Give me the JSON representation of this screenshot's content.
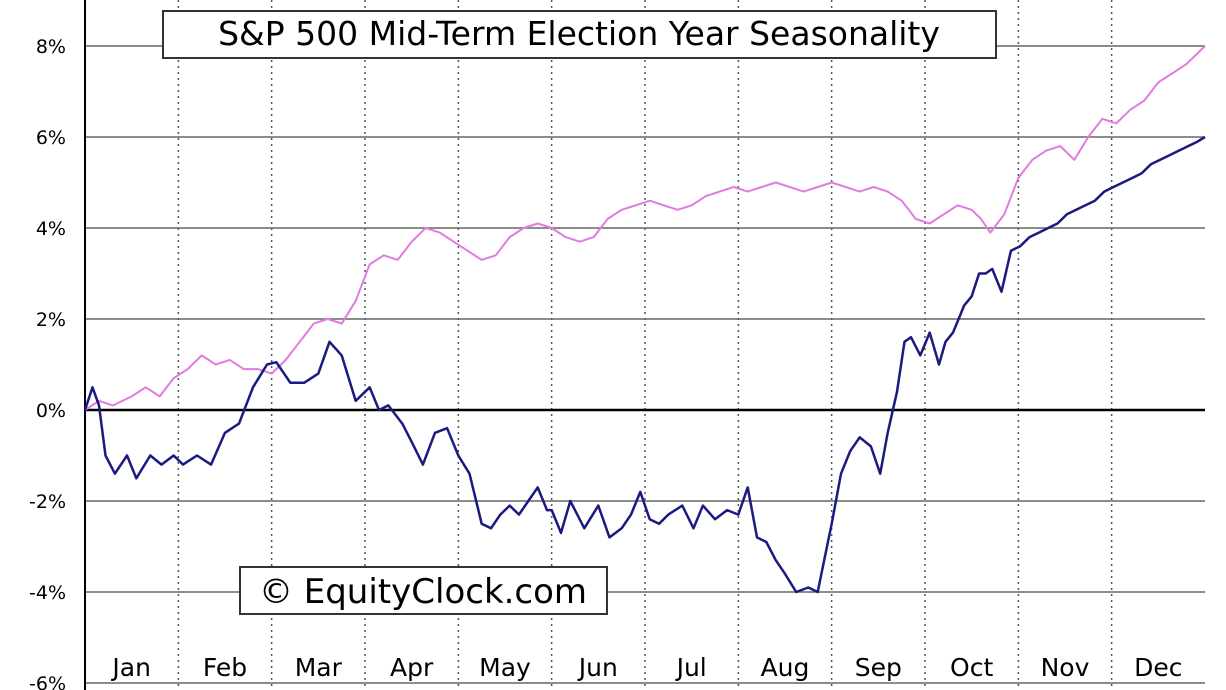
{
  "chart_data": {
    "type": "line",
    "title": "S&P 500 Mid-Term Election Year Seasonality",
    "watermark": "© EquityClock.com",
    "xlabel": "",
    "ylabel": "",
    "x_labels": [
      "Jan",
      "Feb",
      "Mar",
      "Apr",
      "May",
      "Jun",
      "Jul",
      "Aug",
      "Sep",
      "Oct",
      "Nov",
      "Dec"
    ],
    "y_tick_labels": [
      "-6%",
      "-4%",
      "-2%",
      "0%",
      "2%",
      "4%",
      "6%",
      "8%"
    ],
    "y_ticks": [
      -6,
      -4,
      -2,
      0,
      2,
      4,
      6,
      8
    ],
    "xlim": [
      0,
      12
    ],
    "ylim": [
      -6,
      8.5
    ],
    "grid": {
      "horizontal": "solid",
      "vertical": "dotted"
    },
    "series": [
      {
        "color": "#1a1a80",
        "x": [
          0.0,
          0.08,
          0.15,
          0.22,
          0.32,
          0.45,
          0.55,
          0.7,
          0.82,
          0.95,
          1.05,
          1.2,
          1.35,
          1.5,
          1.65,
          1.8,
          1.95,
          2.05,
          2.2,
          2.35,
          2.5,
          2.62,
          2.75,
          2.9,
          3.05,
          3.15,
          3.25,
          3.4,
          3.5,
          3.62,
          3.75,
          3.88,
          4.0,
          4.12,
          4.25,
          4.35,
          4.45,
          4.55,
          4.65,
          4.75,
          4.85,
          4.95,
          5.0,
          5.1,
          5.2,
          5.35,
          5.5,
          5.62,
          5.75,
          5.85,
          5.95,
          6.05,
          6.15,
          6.25,
          6.4,
          6.52,
          6.62,
          6.75,
          6.88,
          7.0,
          7.1,
          7.2,
          7.3,
          7.4,
          7.5,
          7.62,
          7.75,
          7.85,
          7.92,
          8.0,
          8.1,
          8.2,
          8.3,
          8.42,
          8.52,
          8.6,
          8.7,
          8.78,
          8.85,
          8.95,
          9.05,
          9.15,
          9.22,
          9.3,
          9.42,
          9.5,
          9.58,
          9.65,
          9.72,
          9.82,
          9.92,
          10.02,
          10.12,
          10.22,
          10.32,
          10.42,
          10.52,
          10.62,
          10.72,
          10.82,
          10.92,
          11.02,
          11.12,
          11.22,
          11.32,
          11.42,
          11.52,
          11.62,
          11.72,
          11.82,
          11.92,
          12.0
        ],
        "y": [
          0.0,
          0.5,
          0.1,
          -1.0,
          -1.4,
          -1.0,
          -1.5,
          -1.0,
          -1.2,
          -1.0,
          -1.2,
          -1.0,
          -1.2,
          -0.5,
          -0.3,
          0.5,
          1.0,
          1.05,
          0.6,
          0.6,
          0.8,
          1.5,
          1.2,
          0.2,
          0.5,
          0.0,
          0.1,
          -0.3,
          -0.7,
          -1.2,
          -0.5,
          -0.4,
          -1.0,
          -1.4,
          -2.5,
          -2.6,
          -2.3,
          -2.1,
          -2.3,
          -2.0,
          -1.7,
          -2.2,
          -2.2,
          -2.7,
          -2.0,
          -2.6,
          -2.1,
          -2.8,
          -2.6,
          -2.3,
          -1.8,
          -2.4,
          -2.5,
          -2.3,
          -2.1,
          -2.6,
          -2.1,
          -2.4,
          -2.2,
          -2.3,
          -1.7,
          -2.8,
          -2.9,
          -3.3,
          -3.6,
          -4.0,
          -3.9,
          -4.0,
          -3.3,
          -2.5,
          -1.4,
          -0.9,
          -0.6,
          -0.8,
          -1.4,
          -0.5,
          0.4,
          1.5,
          1.6,
          1.2,
          1.7,
          1.0,
          1.5,
          1.7,
          2.3,
          2.5,
          3.0,
          3.0,
          3.1,
          2.6,
          3.5,
          3.6,
          3.8,
          3.9,
          4.0,
          4.1,
          4.3,
          4.4,
          4.5,
          4.6,
          4.8,
          4.9,
          5.0,
          5.1,
          5.2,
          5.4,
          5.5,
          5.6,
          5.7,
          5.8,
          5.9,
          6.0
        ]
      },
      {
        "color": "#e07be0",
        "x": [
          0.0,
          0.15,
          0.3,
          0.5,
          0.65,
          0.8,
          0.95,
          1.1,
          1.25,
          1.4,
          1.55,
          1.7,
          1.85,
          2.0,
          2.15,
          2.3,
          2.45,
          2.6,
          2.75,
          2.9,
          3.05,
          3.2,
          3.35,
          3.5,
          3.65,
          3.8,
          3.95,
          4.1,
          4.25,
          4.4,
          4.55,
          4.7,
          4.85,
          5.0,
          5.15,
          5.3,
          5.45,
          5.6,
          5.75,
          5.9,
          6.05,
          6.2,
          6.35,
          6.5,
          6.65,
          6.8,
          6.95,
          7.1,
          7.25,
          7.4,
          7.55,
          7.7,
          7.85,
          8.0,
          8.15,
          8.3,
          8.45,
          8.6,
          8.75,
          8.9,
          9.05,
          9.2,
          9.35,
          9.5,
          9.6,
          9.7,
          9.85,
          10.0,
          10.15,
          10.3,
          10.45,
          10.6,
          10.75,
          10.9,
          11.05,
          11.2,
          11.35,
          11.5,
          11.65,
          11.8,
          11.95,
          12.0
        ],
        "y": [
          0.0,
          0.2,
          0.1,
          0.3,
          0.5,
          0.3,
          0.7,
          0.9,
          1.2,
          1.0,
          1.1,
          0.9,
          0.9,
          0.8,
          1.1,
          1.5,
          1.9,
          2.0,
          1.9,
          2.4,
          3.2,
          3.4,
          3.3,
          3.7,
          4.0,
          3.9,
          3.7,
          3.5,
          3.3,
          3.4,
          3.8,
          4.0,
          4.1,
          4.0,
          3.8,
          3.7,
          3.8,
          4.2,
          4.4,
          4.5,
          4.6,
          4.5,
          4.4,
          4.5,
          4.7,
          4.8,
          4.9,
          4.8,
          4.9,
          5.0,
          4.9,
          4.8,
          4.9,
          5.0,
          4.9,
          4.8,
          4.9,
          4.8,
          4.6,
          4.2,
          4.1,
          4.3,
          4.5,
          4.4,
          4.2,
          3.9,
          4.3,
          5.1,
          5.5,
          5.7,
          5.8,
          5.5,
          6.0,
          6.4,
          6.3,
          6.6,
          6.8,
          7.2,
          7.4,
          7.6,
          7.9,
          8.0
        ]
      }
    ]
  }
}
